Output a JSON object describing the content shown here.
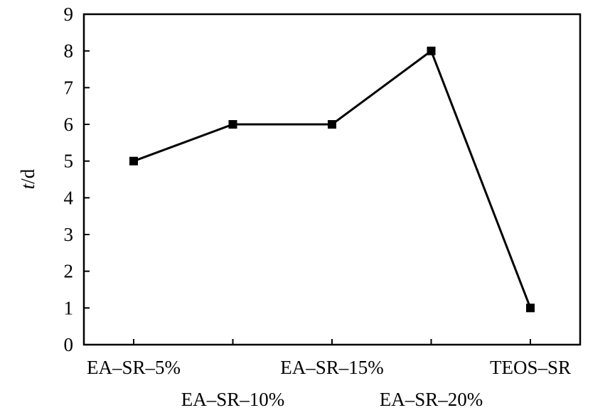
{
  "chart_data": {
    "type": "line",
    "categories": [
      "EA–SR–5%",
      "EA–SR–10%",
      "EA–SR–15%",
      "EA–SR–20%",
      "TEOS–SR"
    ],
    "series": [
      {
        "values": [
          5,
          6,
          6,
          8,
          1
        ]
      }
    ],
    "xlabel": "",
    "ylabel": {
      "italic": "t",
      "rest": "/d"
    },
    "ylim": [
      0,
      9
    ],
    "yticks": [
      "0",
      "1",
      "2",
      "3",
      "4",
      "5",
      "6",
      "7",
      "8",
      "9"
    ],
    "grid": false,
    "legend": "none",
    "marker": "square",
    "line_color": "#000000"
  }
}
